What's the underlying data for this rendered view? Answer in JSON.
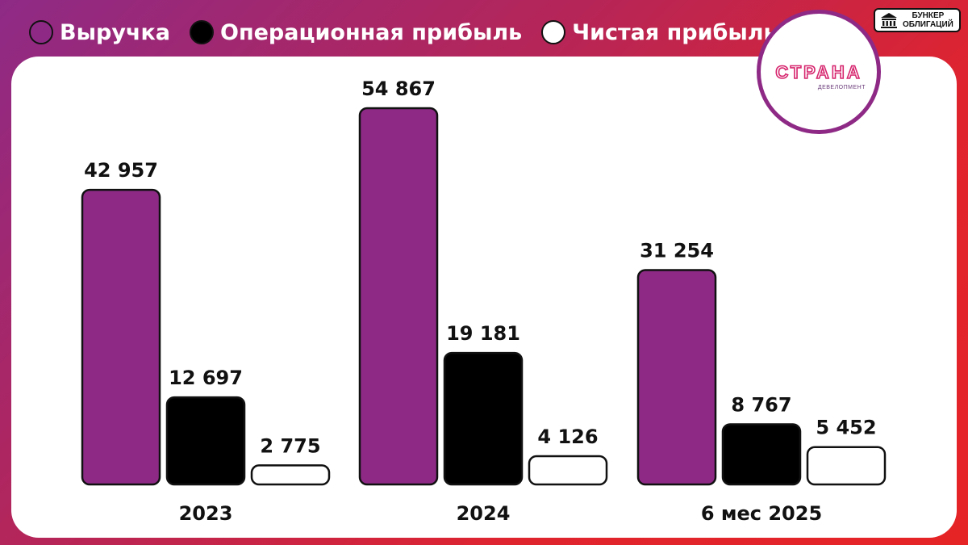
{
  "legend": {
    "items": [
      {
        "label": "Выручка",
        "color": "#8e2a86"
      },
      {
        "label": "Операционная прибыль",
        "color": "#000000"
      },
      {
        "label": "Чистая прибыль",
        "color": "#ffffff"
      }
    ]
  },
  "brand": {
    "badge_line1": "БУНКЕР",
    "badge_line2": "ОБЛИГАЦИЙ",
    "badge_icon": "bank-building-icon",
    "logo_text": "СТРАНА",
    "logo_subtext": "ДЕВЕЛОПМЕНТ"
  },
  "chart_data": {
    "type": "bar",
    "categories": [
      "2023",
      "2024",
      "6 мес 2025"
    ],
    "series": [
      {
        "name": "Выручка",
        "color": "#8e2a86",
        "values": [
          42957,
          54867,
          31254
        ],
        "labels": [
          "42 957",
          "54 867",
          "31 254"
        ]
      },
      {
        "name": "Операционная прибыль",
        "color": "#000000",
        "values": [
          12697,
          19181,
          8767
        ],
        "labels": [
          "12 697",
          "19 181",
          "8 767"
        ]
      },
      {
        "name": "Чистая прибыль",
        "color": "#ffffff",
        "values": [
          2775,
          4126,
          5452
        ],
        "labels": [
          "2 775",
          "4 126",
          "5 452"
        ]
      }
    ],
    "ylim": [
      0,
      54867
    ],
    "grid": false,
    "legend_position": "top-left"
  }
}
